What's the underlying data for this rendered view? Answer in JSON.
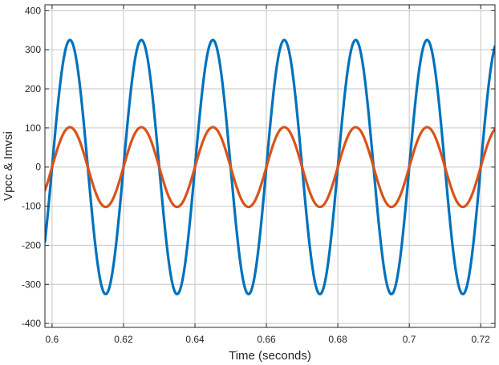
{
  "chart_data": {
    "type": "line",
    "title": "",
    "xlabel": "Time (seconds)",
    "ylabel": "Vpcc & Imvsi",
    "xlim": [
      0.598,
      0.724
    ],
    "ylim": [
      -410,
      415
    ],
    "xticks": [
      0.6,
      0.62,
      0.64,
      0.66,
      0.68,
      0.7,
      0.72
    ],
    "xtick_labels": [
      "0.6",
      "0.62",
      "0.64",
      "0.66",
      "0.68",
      "0.7",
      "0.72"
    ],
    "yticks": [
      400,
      300,
      200,
      100,
      0,
      -100,
      -200,
      -300,
      -400
    ],
    "ytick_labels": [
      "400",
      "300",
      "200",
      "100",
      "0",
      "-100",
      "-200",
      "-300",
      "-400"
    ],
    "grid": true,
    "legend": "none",
    "series": [
      {
        "color": "#0072BD",
        "shape": "sinusoid",
        "amplitude": 325,
        "frequency_hz": 50,
        "peak_times": [
          0.605,
          0.625,
          0.645,
          0.665,
          0.685,
          0.705
        ],
        "trough_times": [
          0.615,
          0.635,
          0.655,
          0.675,
          0.695,
          0.715
        ]
      },
      {
        "color": "#D95319",
        "shape": "sinusoid",
        "amplitude": 102,
        "frequency_hz": 50,
        "peak_times": [
          0.605,
          0.625,
          0.645,
          0.665,
          0.685,
          0.705
        ],
        "trough_times": [
          0.615,
          0.635,
          0.655,
          0.675,
          0.695,
          0.715
        ]
      }
    ]
  }
}
